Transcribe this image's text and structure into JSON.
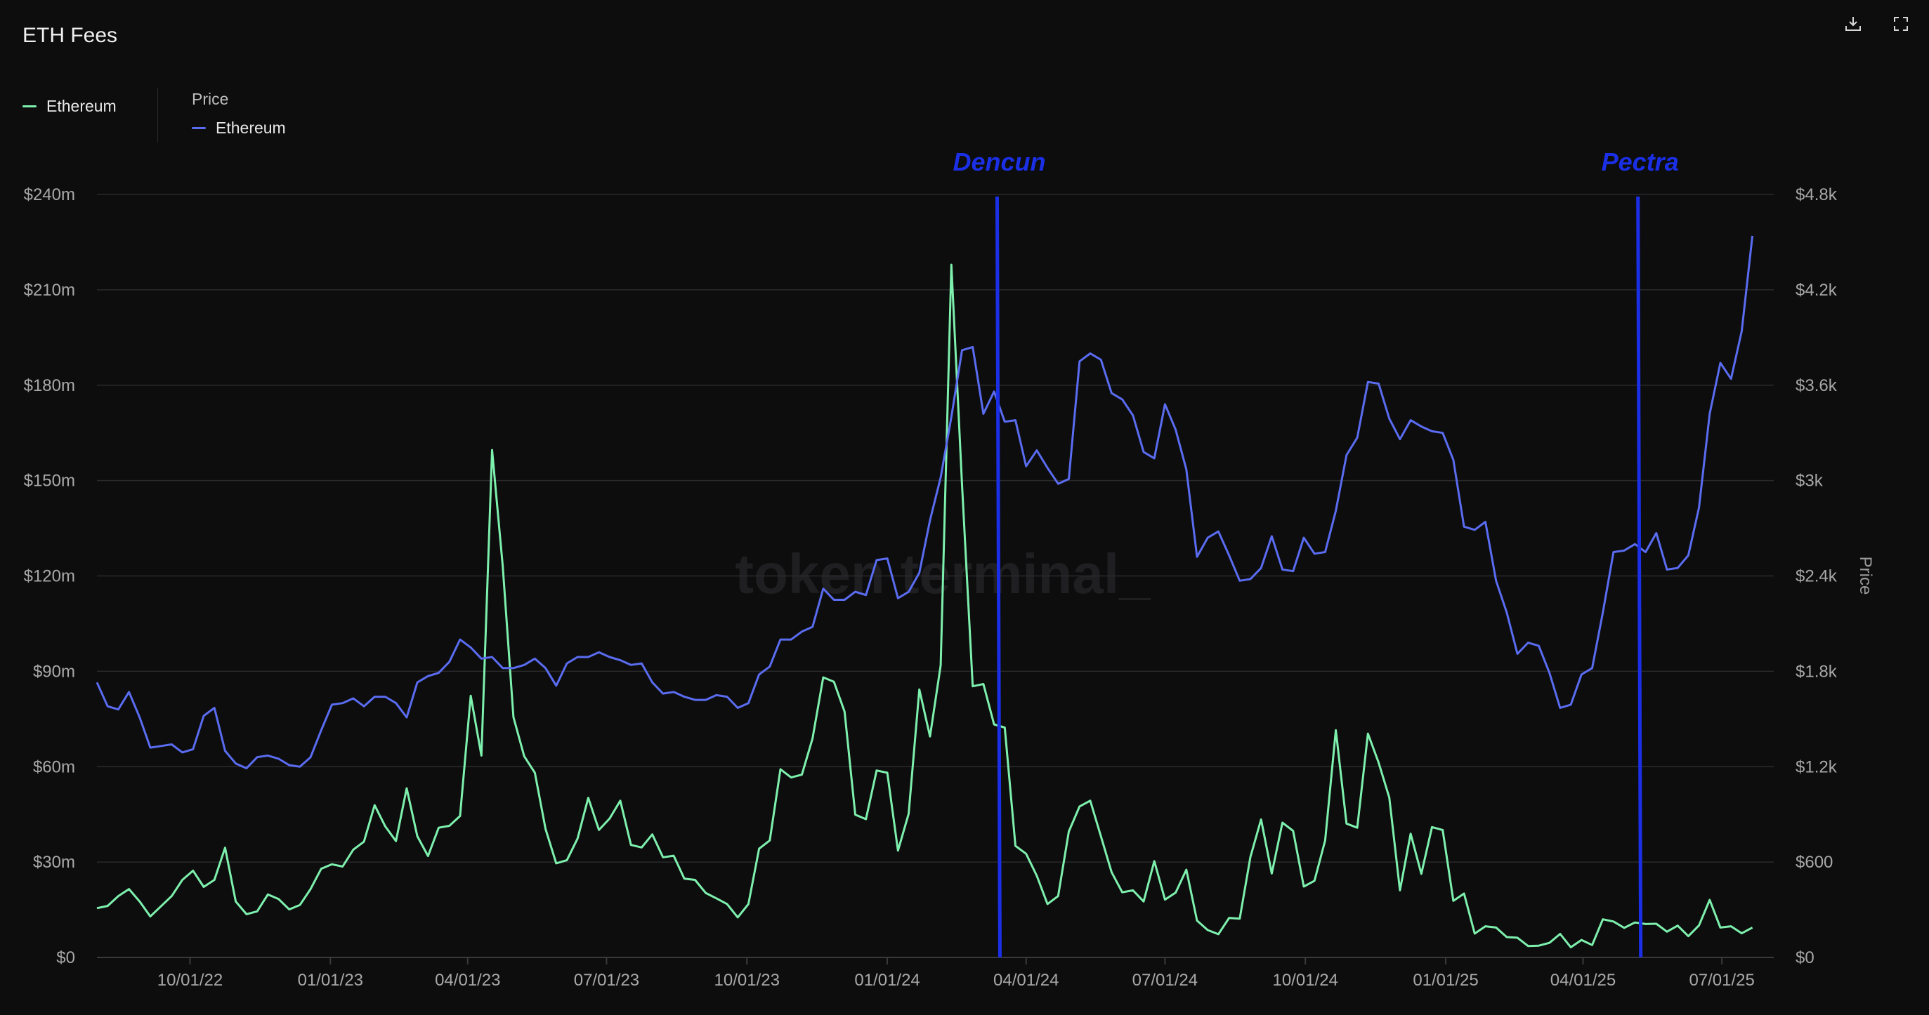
{
  "title": "ETH Fees",
  "icons": {
    "download": "download-icon",
    "expand": "expand-icon"
  },
  "legend": {
    "left": [
      {
        "label": "Ethereum",
        "color": "#7ef0ad"
      }
    ],
    "right_header": "Price",
    "right": [
      {
        "label": "Ethereum",
        "color": "#5a6cf0"
      }
    ]
  },
  "watermark": "token terminal_",
  "colors": {
    "fees": "#7ef0ad",
    "price": "#5a6cf0",
    "event": "#1a2fe6",
    "grid": "#2a2a2c"
  },
  "chart_data": {
    "type": "line",
    "title": "ETH Fees",
    "x_start": "2022-08-01",
    "x_step_days": 7,
    "x_end": "2025-08-04",
    "x_ticks": [
      "10/01/22",
      "01/01/23",
      "04/01/23",
      "07/01/23",
      "10/01/23",
      "01/01/24",
      "04/01/24",
      "07/01/24",
      "10/01/24",
      "01/01/25",
      "04/01/25",
      "07/01/25"
    ],
    "y_left": {
      "ticks": [
        "$0",
        "$30m",
        "$60m",
        "$90m",
        "$120m",
        "$150m",
        "$180m",
        "$210m",
        "$240m"
      ],
      "range": [
        0,
        240
      ]
    },
    "y_right": {
      "label": "Price",
      "ticks": [
        "$0",
        "$600",
        "$1.2k",
        "$1.8k",
        "$2.4k",
        "$3k",
        "$3.6k",
        "$4.2k",
        "$4.8k"
      ],
      "range": [
        0,
        4800
      ]
    },
    "annotations": [
      {
        "label": "Dencun",
        "date": "2024-03-13"
      },
      {
        "label": "Pectra",
        "date": "2025-05-07"
      }
    ],
    "series": [
      {
        "name": "Ethereum",
        "axis": "left",
        "unit": "USD millions",
        "values": [
          15.5,
          16.2,
          19.3,
          21.5,
          17.6,
          12.9,
          16.1,
          19.3,
          24.4,
          27.3,
          22.2,
          24.4,
          34.5,
          17.6,
          13.6,
          14.5,
          19.8,
          18.4,
          15.1,
          16.5,
          21.5,
          27.9,
          29.3,
          28.6,
          33.9,
          36.4,
          47.9,
          41.2,
          36.6,
          53.2,
          38.1,
          31.9,
          40.8,
          41.4,
          44.5,
          82.3,
          63.5,
          159.6,
          123,
          75.6,
          63.3,
          58.1,
          40.4,
          29.6,
          30.6,
          37.4,
          50.2,
          40.1,
          43.7,
          49.3,
          35.4,
          34.6,
          38.7,
          31.5,
          32,
          24.8,
          24.4,
          20.3,
          18.6,
          16.8,
          12.6,
          16.8,
          34.2,
          36.8,
          59.2,
          56.6,
          57.5,
          68.9,
          88.1,
          86.7,
          77.3,
          44.9,
          43.5,
          58.8,
          58.1,
          33.6,
          45.2,
          84.3,
          69.5,
          91.9,
          217.9,
          148.6,
          85.3,
          86,
          73.3,
          72.3,
          35.1,
          32.6,
          25.7,
          16.8,
          19.3,
          39.6,
          47.5,
          49.3,
          38.1,
          26.8,
          20.5,
          21.1,
          17.6,
          30.3,
          18.2,
          20.4,
          27.6,
          11.6,
          8.6,
          7.3,
          12.4,
          12.2,
          31.6,
          43.4,
          26.4,
          42.4,
          39.8,
          22.3,
          24.1,
          36.8,
          71.5,
          42.1,
          40.8,
          70.4,
          61.3,
          50.3,
          21.1,
          38.9,
          26.3,
          41,
          40.1,
          17.8,
          20.1,
          7.5,
          9.8,
          9.4,
          6.4,
          6.2,
          3.6,
          3.7,
          4.6,
          7.4,
          3.2,
          5.5,
          3.9,
          12,
          11.3,
          9.3,
          11,
          10.5,
          10.6,
          8.1,
          10,
          6.7,
          10.1,
          18.1,
          9.4,
          9.8,
          7.6,
          9.4
        ]
      },
      {
        "name": "Ethereum",
        "axis": "right",
        "unit": "USD",
        "values": [
          1730,
          1580,
          1560,
          1670,
          1510,
          1320,
          1330,
          1340,
          1290,
          1310,
          1520,
          1570,
          1300,
          1220,
          1190,
          1260,
          1270,
          1250,
          1210,
          1200,
          1260,
          1430,
          1590,
          1600,
          1630,
          1580,
          1640,
          1640,
          1600,
          1510,
          1730,
          1770,
          1790,
          1860,
          2000,
          1950,
          1880,
          1890,
          1820,
          1820,
          1840,
          1880,
          1820,
          1710,
          1850,
          1890,
          1890,
          1920,
          1890,
          1870,
          1840,
          1850,
          1730,
          1660,
          1670,
          1640,
          1620,
          1620,
          1650,
          1640,
          1570,
          1600,
          1780,
          1830,
          2000,
          2000,
          2050,
          2080,
          2320,
          2250,
          2250,
          2300,
          2280,
          2500,
          2510,
          2260,
          2300,
          2420,
          2750,
          3020,
          3400,
          3820,
          3840,
          3420,
          3560,
          3370,
          3380,
          3090,
          3190,
          3080,
          2980,
          3010,
          3750,
          3800,
          3760,
          3550,
          3510,
          3410,
          3180,
          3140,
          3480,
          3320,
          3070,
          2520,
          2640,
          2680,
          2530,
          2370,
          2380,
          2450,
          2650,
          2440,
          2430,
          2640,
          2540,
          2550,
          2810,
          3160,
          3270,
          3620,
          3610,
          3390,
          3260,
          3380,
          3340,
          3310,
          3300,
          3130,
          2710,
          2690,
          2740,
          2370,
          2170,
          1910,
          1980,
          1960,
          1790,
          1570,
          1590,
          1780,
          1820,
          2170,
          2550,
          2560,
          2600,
          2550,
          2670,
          2440,
          2450,
          2530,
          2830,
          3420,
          3740,
          3640,
          3940,
          4540
        ]
      }
    ]
  }
}
